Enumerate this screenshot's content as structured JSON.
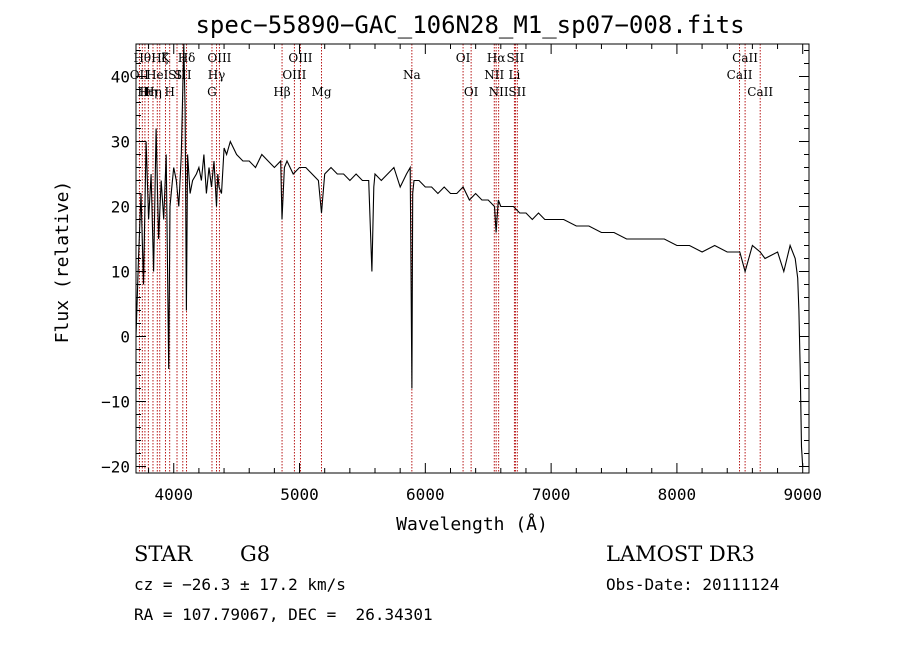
{
  "chart_data": {
    "type": "line",
    "title": "spec−55890−GAC_106N28_M1_sp07−008.fits",
    "xlabel": "Wavelength (Å)",
    "ylabel": "Flux (relative)",
    "xlim": [
      3700,
      9050
    ],
    "ylim": [
      -21,
      45
    ],
    "xticks": [
      4000,
      5000,
      6000,
      7000,
      8000,
      9000
    ],
    "xtick_labels": [
      "4000",
      "5000",
      "6000",
      "7000",
      "8000",
      "9000"
    ],
    "yticks": [
      -20,
      -10,
      0,
      10,
      20,
      30,
      40
    ],
    "ytick_labels": [
      "−20",
      "−10",
      "0",
      "10",
      "20",
      "30",
      "40"
    ],
    "series": [
      {
        "name": "flux",
        "x": [
          3700,
          3720,
          3740,
          3760,
          3780,
          3800,
          3820,
          3840,
          3860,
          3880,
          3900,
          3920,
          3940,
          3960,
          3970,
          3980,
          4000,
          4020,
          4040,
          4060,
          4080,
          4090,
          4101,
          4110,
          4130,
          4150,
          4180,
          4200,
          4220,
          4240,
          4260,
          4280,
          4300,
          4320,
          4340,
          4350,
          4360,
          4380,
          4400,
          4420,
          4450,
          4500,
          4550,
          4600,
          4650,
          4700,
          4750,
          4800,
          4850,
          4861,
          4880,
          4900,
          4950,
          5000,
          5050,
          5100,
          5150,
          5175,
          5200,
          5250,
          5300,
          5350,
          5400,
          5450,
          5500,
          5550,
          5575,
          5590,
          5600,
          5650,
          5700,
          5750,
          5800,
          5850,
          5880,
          5893,
          5900,
          5910,
          5950,
          6000,
          6050,
          6100,
          6150,
          6200,
          6250,
          6300,
          6350,
          6400,
          6450,
          6500,
          6550,
          6563,
          6580,
          6600,
          6650,
          6700,
          6750,
          6800,
          6850,
          6900,
          6950,
          7000,
          7100,
          7200,
          7300,
          7400,
          7500,
          7600,
          7700,
          7800,
          7900,
          8000,
          8100,
          8200,
          8300,
          8400,
          8500,
          8542,
          8600,
          8662,
          8700,
          8800,
          8850,
          8900,
          8940,
          8960,
          8970,
          8980,
          8990,
          9000
        ],
        "values": [
          0,
          12,
          22,
          8,
          30,
          18,
          25,
          10,
          32,
          15,
          24,
          18,
          28,
          -5,
          20,
          22,
          26,
          24,
          20,
          28,
          45,
          35,
          4,
          28,
          22,
          24,
          25,
          26,
          24,
          28,
          22,
          26,
          23,
          27,
          20,
          25,
          23,
          22,
          29,
          28,
          30,
          28,
          27,
          27,
          26,
          28,
          27,
          26,
          27,
          18,
          26,
          27,
          25,
          26,
          26,
          25,
          24,
          19,
          25,
          26,
          25,
          25,
          24,
          25,
          24,
          24,
          10,
          23,
          25,
          24,
          25,
          26,
          23,
          25,
          26,
          -8,
          22,
          24,
          24,
          23,
          23,
          22,
          23,
          22,
          22,
          23,
          21,
          22,
          21,
          21,
          20,
          16,
          21,
          20,
          20,
          20,
          19,
          19,
          18,
          19,
          18,
          18,
          18,
          17,
          17,
          16,
          16,
          15,
          15,
          15,
          15,
          14,
          14,
          13,
          14,
          13,
          13,
          10,
          14,
          13,
          12,
          13,
          10,
          14,
          12,
          9,
          4,
          -5,
          -17,
          -20
        ]
      }
    ],
    "line_markers": [
      {
        "wavelength": 3727,
        "label": "OII",
        "row": 2
      },
      {
        "wavelength": 3750,
        "label": "Hθ",
        "row": 1
      },
      {
        "wavelength": 3771,
        "label": "Hι",
        "row": 3
      },
      {
        "wavelength": 3798,
        "label": "Hη",
        "row": 3
      },
      {
        "wavelength": 3835,
        "label": "Hη",
        "row": 3
      },
      {
        "wavelength": 3869,
        "label": "HeI",
        "row": 2
      },
      {
        "wavelength": 3889,
        "label": "Hζ",
        "row": 1
      },
      {
        "wavelength": 3934,
        "label": "K",
        "row": 1
      },
      {
        "wavelength": 3968,
        "label": "H",
        "row": 3
      },
      {
        "wavelength": 4026,
        "label": "SII",
        "row": 2
      },
      {
        "wavelength": 4072,
        "label": "SII",
        "row": 2
      },
      {
        "wavelength": 4102,
        "label": "Hδ",
        "row": 1
      },
      {
        "wavelength": 4304,
        "label": "G",
        "row": 3
      },
      {
        "wavelength": 4340,
        "label": "Hγ",
        "row": 2
      },
      {
        "wavelength": 4363,
        "label": "OIII",
        "row": 1
      },
      {
        "wavelength": 4861,
        "label": "Hβ",
        "row": 3
      },
      {
        "wavelength": 4959,
        "label": "OIII",
        "row": 2
      },
      {
        "wavelength": 5007,
        "label": "OIII",
        "row": 1
      },
      {
        "wavelength": 5175,
        "label": "Mg",
        "row": 3
      },
      {
        "wavelength": 5893,
        "label": "Na",
        "row": 2
      },
      {
        "wavelength": 6300,
        "label": "OI",
        "row": 1
      },
      {
        "wavelength": 6364,
        "label": "OI",
        "row": 3
      },
      {
        "wavelength": 6548,
        "label": "NII",
        "row": 2
      },
      {
        "wavelength": 6563,
        "label": "Hα",
        "row": 1
      },
      {
        "wavelength": 6583,
        "label": "NII",
        "row": 3
      },
      {
        "wavelength": 6708,
        "label": "Li",
        "row": 2
      },
      {
        "wavelength": 6716,
        "label": "SII",
        "row": 1
      },
      {
        "wavelength": 6731,
        "label": "SII",
        "row": 3
      },
      {
        "wavelength": 8498,
        "label": "CaII",
        "row": 2
      },
      {
        "wavelength": 8542,
        "label": "CaII",
        "row": 1
      },
      {
        "wavelength": 8662,
        "label": "CaII",
        "row": 3
      }
    ]
  },
  "info": {
    "class_label": "STAR",
    "subclass": "G8",
    "survey": "LAMOST DR3",
    "cz": "cz = −26.3 ± 17.2 km/s",
    "obs_date": "Obs-Date: 20111124",
    "coords": "RA = 107.79067, DEC =  26.34301"
  },
  "colors": {
    "line": "#000000",
    "marker": "#b00000",
    "background": "#ffffff"
  }
}
